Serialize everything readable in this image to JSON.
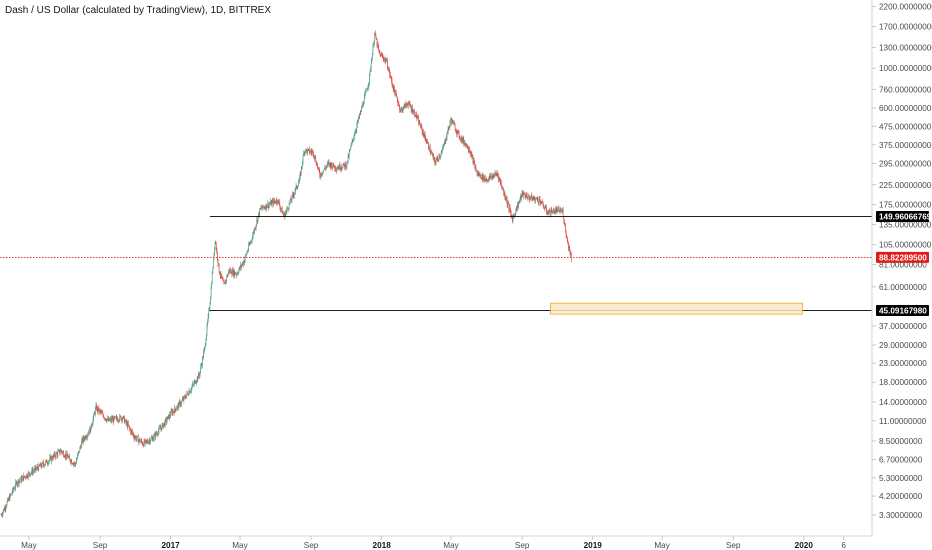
{
  "chart_data": {
    "type": "candlestick",
    "title": "Dash / US Dollar (calculated by TradingView), 1D, BITTREX",
    "y_scale": "log",
    "ylim": [
      2.9,
      2300
    ],
    "xlim": [
      "2016-03-12",
      "2020-04-28"
    ],
    "grid": false,
    "y_ticks": [
      {
        "value": 2200,
        "label": "2200.00000000"
      },
      {
        "value": 1700,
        "label": "1700.00000000"
      },
      {
        "value": 1300,
        "label": "1300.00000000"
      },
      {
        "value": 1000,
        "label": "1000.00000000"
      },
      {
        "value": 760,
        "label": "760.00000000"
      },
      {
        "value": 600,
        "label": "600.00000000"
      },
      {
        "value": 475,
        "label": "475.00000000"
      },
      {
        "value": 375,
        "label": "375.00000000"
      },
      {
        "value": 295,
        "label": "295.00000000"
      },
      {
        "value": 225,
        "label": "225.00000000"
      },
      {
        "value": 175,
        "label": "175.00000000"
      },
      {
        "value": 135,
        "label": "135.00000000"
      },
      {
        "value": 105,
        "label": "105.00000000"
      },
      {
        "value": 81,
        "label": "81.00000000"
      },
      {
        "value": 61,
        "label": "61.00000000"
      },
      {
        "value": 37,
        "label": "37.00000000"
      },
      {
        "value": 29,
        "label": "29.00000000"
      },
      {
        "value": 23,
        "label": "23.00000000"
      },
      {
        "value": 18,
        "label": "18.00000000"
      },
      {
        "value": 14,
        "label": "14.00000000"
      },
      {
        "value": 11,
        "label": "11.00000000"
      },
      {
        "value": 8.5,
        "label": "8.50000000"
      },
      {
        "value": 6.7,
        "label": "6.70000000"
      },
      {
        "value": 5.3,
        "label": "5.30000000"
      },
      {
        "value": 4.2,
        "label": "4.20000000"
      },
      {
        "value": 3.3,
        "label": "3.30000000"
      }
    ],
    "x_ticks": [
      {
        "date": "2016-05-01",
        "label": "May",
        "bold": false
      },
      {
        "date": "2016-09-01",
        "label": "Sep",
        "bold": false
      },
      {
        "date": "2017-01-01",
        "label": "2017",
        "bold": true
      },
      {
        "date": "2017-05-01",
        "label": "May",
        "bold": false
      },
      {
        "date": "2017-09-01",
        "label": "Sep",
        "bold": false
      },
      {
        "date": "2018-01-01",
        "label": "2018",
        "bold": true
      },
      {
        "date": "2018-05-01",
        "label": "May",
        "bold": false
      },
      {
        "date": "2018-09-01",
        "label": "Sep",
        "bold": false
      },
      {
        "date": "2019-01-01",
        "label": "2019",
        "bold": true
      },
      {
        "date": "2019-05-01",
        "label": "May",
        "bold": false
      },
      {
        "date": "2019-09-01",
        "label": "Sep",
        "bold": false
      },
      {
        "date": "2020-01-01",
        "label": "2020",
        "bold": true
      },
      {
        "date": "2020-03-10",
        "label": "6",
        "bold": false
      }
    ],
    "price_path": [
      [
        "2016-03-14",
        3.3
      ],
      [
        "2016-04-10",
        5.0
      ],
      [
        "2016-05-01",
        5.6
      ],
      [
        "2016-06-01",
        6.5
      ],
      [
        "2016-06-25",
        7.5
      ],
      [
        "2016-07-20",
        6.3
      ],
      [
        "2016-08-01",
        8.5
      ],
      [
        "2016-08-15",
        9.8
      ],
      [
        "2016-08-25",
        13.0
      ],
      [
        "2016-09-15",
        11.0
      ],
      [
        "2016-10-10",
        11.5
      ],
      [
        "2016-10-30",
        9.0
      ],
      [
        "2016-11-15",
        8.2
      ],
      [
        "2016-12-01",
        8.8
      ],
      [
        "2016-12-20",
        10.5
      ],
      [
        "2017-01-01",
        12.0
      ],
      [
        "2017-01-20",
        14.0
      ],
      [
        "2017-02-05",
        16.5
      ],
      [
        "2017-02-20",
        20.0
      ],
      [
        "2017-03-01",
        28.0
      ],
      [
        "2017-03-10",
        50.0
      ],
      [
        "2017-03-19",
        112.0
      ],
      [
        "2017-03-26",
        75.0
      ],
      [
        "2017-04-03",
        62.0
      ],
      [
        "2017-04-12",
        75.0
      ],
      [
        "2017-04-25",
        72.0
      ],
      [
        "2017-05-08",
        85.0
      ],
      [
        "2017-05-22",
        115.0
      ],
      [
        "2017-06-05",
        165.0
      ],
      [
        "2017-06-20",
        175.0
      ],
      [
        "2017-07-05",
        185.0
      ],
      [
        "2017-07-16",
        150.0
      ],
      [
        "2017-07-26",
        178.0
      ],
      [
        "2017-08-12",
        240.0
      ],
      [
        "2017-08-20",
        350.0
      ],
      [
        "2017-09-05",
        340.0
      ],
      [
        "2017-09-16",
        255.0
      ],
      [
        "2017-10-01",
        295.0
      ],
      [
        "2017-10-15",
        280.0
      ],
      [
        "2017-11-01",
        290.0
      ],
      [
        "2017-11-12",
        400.0
      ],
      [
        "2017-11-30",
        640.0
      ],
      [
        "2017-12-10",
        850.0
      ],
      [
        "2017-12-20",
        1550.0
      ],
      [
        "2017-12-28",
        1200.0
      ],
      [
        "2018-01-09",
        1100.0
      ],
      [
        "2018-01-20",
        800.0
      ],
      [
        "2018-02-03",
        580.0
      ],
      [
        "2018-02-15",
        640.0
      ],
      [
        "2018-03-01",
        550.0
      ],
      [
        "2018-03-20",
        390.0
      ],
      [
        "2018-04-03",
        300.0
      ],
      [
        "2018-04-15",
        340.0
      ],
      [
        "2018-05-01",
        520.0
      ],
      [
        "2018-05-15",
        420.0
      ],
      [
        "2018-06-01",
        360.0
      ],
      [
        "2018-06-15",
        260.0
      ],
      [
        "2018-07-01",
        240.0
      ],
      [
        "2018-07-20",
        260.0
      ],
      [
        "2018-08-05",
        185.0
      ],
      [
        "2018-08-15",
        145.0
      ],
      [
        "2018-09-01",
        200.0
      ],
      [
        "2018-09-15",
        190.0
      ],
      [
        "2018-10-01",
        185.0
      ],
      [
        "2018-10-15",
        158.0
      ],
      [
        "2018-11-01",
        162.0
      ],
      [
        "2018-11-10",
        160.0
      ],
      [
        "2018-11-18",
        110.0
      ],
      [
        "2018-11-25",
        88.8
      ]
    ],
    "horizontal_lines": [
      {
        "value": 149.96066769,
        "label": "149.96066769",
        "start": "2017-03-10",
        "color": "#000000"
      },
      {
        "value": 45.0916798,
        "label": "45.09167980",
        "start": "2017-03-10",
        "color": "#000000"
      }
    ],
    "current_price": {
      "value": 88.822895,
      "label": "88.82289500",
      "color": "#e01b1b"
    },
    "zone": {
      "start": "2018-10-20",
      "end": "2019-12-30",
      "low": 43.0,
      "high": 49.5,
      "fill": "#fde7c4",
      "stroke": "#f5a623"
    },
    "colors": {
      "up": "#53a08a",
      "down": "#e5473f",
      "axis": "#d6d6d6"
    }
  }
}
